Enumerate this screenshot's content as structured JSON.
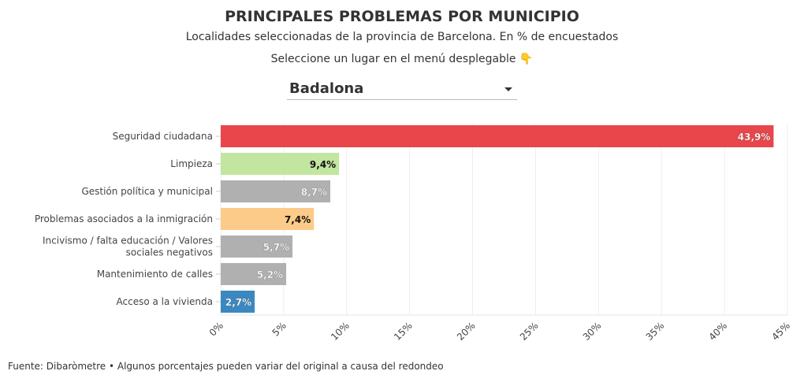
{
  "title": "PRINCIPALES PROBLEMAS POR MUNICIPIO",
  "subtitle": "Localidades seleccionadas de la provincia de Barcelona. En % de encuestados",
  "prompt": "Seleccione un lugar en el menú desplegable 👇",
  "dropdown": {
    "selected": "Badalona",
    "icon": "chevron-down-icon"
  },
  "footer": "Fuente: Dibaròmetre • Algunos porcentajes pueden variar del original a causa del redondeo",
  "chart_data": {
    "type": "bar",
    "orientation": "horizontal",
    "categories": [
      "Seguridad ciudadana",
      "Limpieza",
      "Gestión política y municipal",
      "Problemas asociados a la inmigración",
      "Incivismo / falta educación / Valores sociales negativos",
      "Mantenimiento de calles",
      "Acceso a la vivienda"
    ],
    "values": [
      43.9,
      9.4,
      8.7,
      7.4,
      5.7,
      5.2,
      2.7
    ],
    "data_labels": [
      "43,9%",
      "9,4%",
      "8,7%",
      "7,4%",
      "5,7%",
      "5,2%",
      "2,7%"
    ],
    "colors": [
      "#e8464a",
      "#c2e6a0",
      "#b0b0b0",
      "#fdcb89",
      "#b0b0b0",
      "#b0b0b0",
      "#3b88c0"
    ],
    "label_colors": [
      "#ffffff",
      "#111111",
      "#ffffff",
      "#111111",
      "#ffffff",
      "#ffffff",
      "#ffffff"
    ],
    "xlim": [
      0,
      45
    ],
    "xticks": [
      0,
      5,
      10,
      15,
      20,
      25,
      30,
      35,
      40,
      45
    ],
    "xtick_labels": [
      "0%",
      "5%",
      "10%",
      "15%",
      "20%",
      "25%",
      "30%",
      "35%",
      "40%",
      "45%"
    ],
    "grid": true
  }
}
